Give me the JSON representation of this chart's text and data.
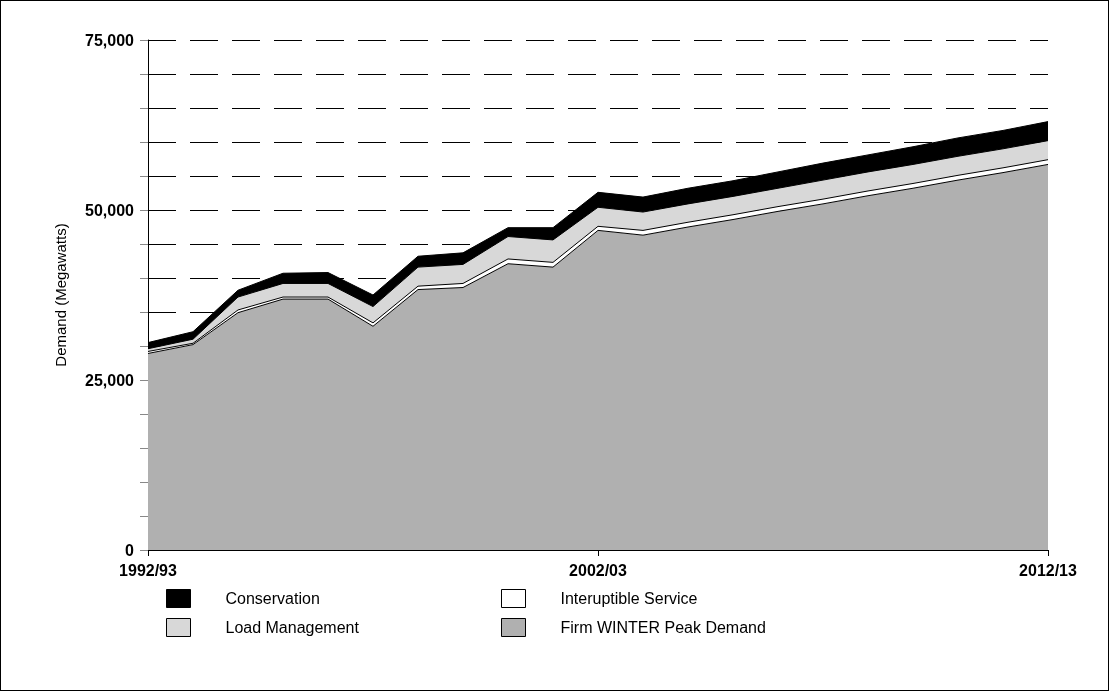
{
  "chart_data": {
    "type": "area",
    "ylabel": "Demand (Megawatts)",
    "categories": [
      "1992/93",
      null,
      null,
      null,
      null,
      null,
      null,
      null,
      null,
      null,
      "2002/03",
      null,
      null,
      null,
      null,
      null,
      null,
      null,
      null,
      null,
      "2012/13"
    ],
    "stacked": true,
    "series": [
      {
        "name": "Firm WINTER Peak Demand",
        "color": "#b0b0b0",
        "values": [
          28900,
          30200,
          34900,
          36900,
          36900,
          32900,
          38300,
          38600,
          42100,
          41600,
          47000,
          46300,
          47500,
          48600,
          49800,
          50900,
          52100,
          53200,
          54400,
          55500,
          56700
        ]
      },
      {
        "name": "Interuptible Service",
        "color": "#ffffff",
        "values": [
          300,
          200,
          400,
          300,
          300,
          500,
          500,
          600,
          700,
          700,
          600,
          700,
          700,
          700,
          700,
          700,
          700,
          700,
          700,
          700,
          700
        ]
      },
      {
        "name": "Load Management",
        "color": "#d8d8d8",
        "values": [
          400,
          600,
          1900,
          2000,
          2000,
          2400,
          2800,
          2800,
          3300,
          3300,
          2800,
          2700,
          2700,
          2700,
          2700,
          2800,
          2800,
          2800,
          2800,
          2800,
          2800
        ]
      },
      {
        "name": "Conservation",
        "color": "#000000",
        "values": [
          900,
          1100,
          1000,
          1500,
          1600,
          1700,
          1600,
          1700,
          1300,
          1800,
          2200,
          2200,
          2300,
          2300,
          2400,
          2500,
          2500,
          2600,
          2700,
          2700,
          2800
        ]
      }
    ],
    "ylim": [
      0,
      75000
    ],
    "yticks": [
      {
        "value": 0,
        "label": "0"
      },
      {
        "value": 5000,
        "label": null
      },
      {
        "value": 10000,
        "label": null
      },
      {
        "value": 15000,
        "label": null
      },
      {
        "value": 20000,
        "label": null
      },
      {
        "value": 25000,
        "label": "25,000"
      },
      {
        "value": 30000,
        "label": null
      },
      {
        "value": 35000,
        "label": null
      },
      {
        "value": 40000,
        "label": null
      },
      {
        "value": 45000,
        "label": null
      },
      {
        "value": 50000,
        "label": "50,000"
      },
      {
        "value": 55000,
        "label": null
      },
      {
        "value": 60000,
        "label": null
      },
      {
        "value": 65000,
        "label": null
      },
      {
        "value": 70000,
        "label": null
      },
      {
        "value": 75000,
        "label": "75,000"
      }
    ],
    "grid": true,
    "legend": "bottom",
    "marker": "none"
  }
}
